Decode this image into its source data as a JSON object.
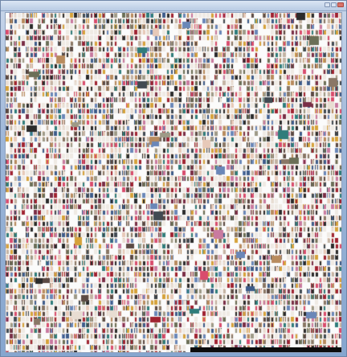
{
  "window": {
    "title": "",
    "frame_color": "#9db6d8",
    "close_color": "#d8746a"
  },
  "mosaic": {
    "description": "",
    "palette": [
      "#2b2b2b",
      "#5b4a44",
      "#8a7766",
      "#c4b3a3",
      "#e8ddd2",
      "#a02331",
      "#d94c6d",
      "#3e5c8a",
      "#6a87b8",
      "#6b6f57",
      "#9e9a87",
      "#b88b5e",
      "#414a52",
      "#e7c9b8",
      "#7a2e46",
      "#c97aa0",
      "#2f7d7b",
      "#d6a23a"
    ],
    "background": "#fbfbfb"
  }
}
